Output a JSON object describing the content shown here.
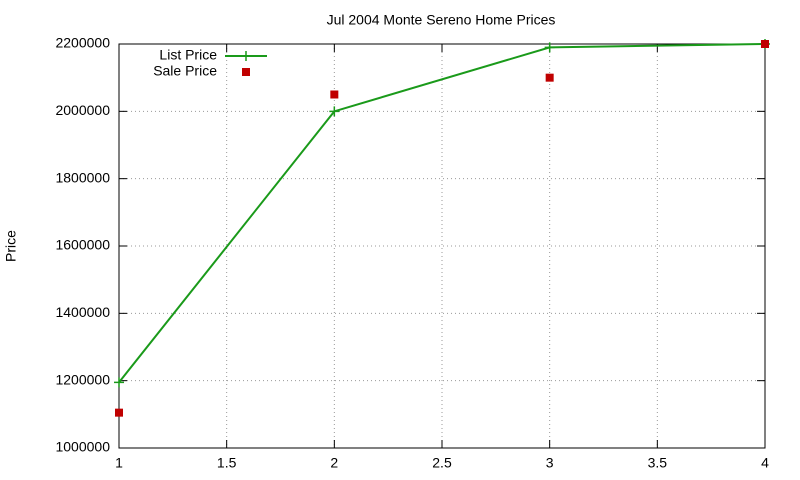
{
  "chart_data": {
    "type": "line",
    "title": "Jul 2004 Monte Sereno Home Prices",
    "y_label": "Price",
    "x": [
      1,
      2,
      3,
      4
    ],
    "series": [
      {
        "name": "List Price",
        "color": "#1a9a1a",
        "style": "linespoints",
        "values": [
          1195000,
          2000000,
          2190000,
          2200000
        ]
      },
      {
        "name": "Sale Price",
        "color": "#c00000",
        "style": "points",
        "values": [
          1105000,
          2050000,
          2100000,
          2200000
        ]
      }
    ],
    "xlim": [
      1,
      4
    ],
    "xticks": [
      1,
      1.5,
      2,
      2.5,
      3,
      3.5,
      4
    ],
    "ylim": [
      1000000,
      2200000
    ],
    "yticks": [
      1000000,
      1200000,
      1400000,
      1600000,
      1800000,
      2000000,
      2200000
    ],
    "grid": true,
    "legend": "top-left"
  }
}
